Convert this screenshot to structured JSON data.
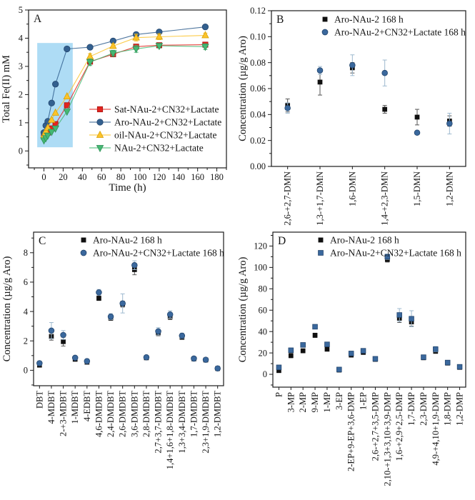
{
  "figure": {
    "description": "Four-panel geochemistry figure",
    "panel_labels": [
      "A",
      "B",
      "C",
      "D"
    ]
  },
  "chart_data": [
    {
      "id": "A",
      "type": "line",
      "panel_label": "A",
      "xlabel": "Time (h)",
      "ylabel": "Total Fe(II) mM",
      "xlim": [
        -16,
        190
      ],
      "ylim": [
        -0.6,
        5
      ],
      "xticks": [
        0,
        20,
        40,
        60,
        80,
        100,
        120,
        140,
        160,
        180
      ],
      "yticks": [
        0,
        1,
        2,
        3,
        4,
        5
      ],
      "x_minor_step": 10,
      "y_minor_step": 0.5,
      "ytick_decimals": 0,
      "grid": false,
      "legend_position": "inside right-middle",
      "highlight_region": {
        "x0": -7,
        "x1": 30,
        "y0": 0.13,
        "y1": 3.83,
        "color": "#aedcf5"
      },
      "x": [
        0,
        2,
        4,
        8,
        12,
        24,
        48,
        72,
        96,
        120,
        168
      ],
      "series": [
        {
          "name": "Sat-NAu-2+CN32+Lactate",
          "marker": "square",
          "color": "#e2241f",
          "edge": "#a81511",
          "err_color": "#e2241f",
          "values": [
            0.5,
            0.6,
            0.65,
            0.8,
            0.95,
            1.62,
            3.17,
            3.43,
            3.7,
            3.75,
            3.77
          ],
          "err": [
            0,
            0,
            0,
            0,
            0,
            0,
            0.08,
            0.05,
            0.05,
            0.05,
            0.06
          ]
        },
        {
          "name": "Aro-NAu-2+CN32+Lactate",
          "marker": "circle",
          "color": "#33608f",
          "edge": "#24466e",
          "err_color": "#33608f",
          "values": [
            0.65,
            0.9,
            1.05,
            1.7,
            2.37,
            3.62,
            3.68,
            3.9,
            4.13,
            4.22,
            4.4
          ],
          "err": [
            0,
            0,
            0,
            0,
            0,
            0,
            0,
            0,
            0,
            0,
            0
          ]
        },
        {
          "name": "oil-NAu-2+CN32+Lactate",
          "marker": "triangle-up",
          "color": "#fcc32a",
          "edge": "#d7a106",
          "err_color": "#fcc32a",
          "values": [
            0.55,
            0.7,
            0.82,
            1.1,
            1.35,
            1.93,
            3.35,
            3.72,
            4.02,
            4.05,
            4.1
          ],
          "err": [
            0,
            0,
            0,
            0,
            0,
            0,
            0.1,
            0.08,
            0.12,
            0.1,
            0.08
          ]
        },
        {
          "name": "NAu-2+CN32+Lactate",
          "marker": "triangle-down",
          "color": "#45b873",
          "edge": "#2f9157",
          "err_color": "#45b873",
          "values": [
            0.38,
            0.46,
            0.55,
            0.68,
            0.8,
            1.4,
            3.15,
            3.47,
            3.62,
            3.73,
            3.7
          ],
          "err": [
            0,
            0,
            0,
            0,
            0,
            0,
            0.12,
            0.1,
            0.12,
            0.08,
            0.1
          ]
        }
      ]
    },
    {
      "id": "B",
      "type": "scatter",
      "panel_label": "B",
      "xlabel": "",
      "ylabel": "Concentration (µg/g Aro)",
      "ylim": [
        0,
        0.12
      ],
      "yticks": [
        0,
        0.02,
        0.04,
        0.06,
        0.08,
        0.1,
        0.12
      ],
      "y_minor_step": 0.01,
      "ytick_decimals": 2,
      "grid": false,
      "legend_position": "inside top",
      "categories": [
        "2,6-+2,7-DMN",
        "1,3-+1,7-DMN",
        "1,6-DMN",
        "1,4-+2,3-DMN",
        "1,5-DMN",
        "1,2-DMN"
      ],
      "series": [
        {
          "name": "Aro-NAu-2 168 h",
          "marker": "square",
          "color": "#101010",
          "err_color": "#555555",
          "values": [
            0.047,
            0.065,
            0.076,
            0.044,
            0.038,
            0.035
          ],
          "err": [
            0.005,
            0.01,
            0.004,
            0.003,
            0.006,
            0.004
          ]
        },
        {
          "name": "Aro-NAu-2+CN32+Lactate 168 h",
          "marker": "circle",
          "color": "#3a689d",
          "edge": "#24466e",
          "err_color": "#9db9cf",
          "values": [
            0.045,
            0.074,
            0.078,
            0.072,
            0.026,
            0.033
          ],
          "err": [
            0.004,
            0.003,
            0.008,
            0.01,
            0.001,
            0.008
          ]
        }
      ]
    },
    {
      "id": "C",
      "type": "scatter",
      "panel_label": "C",
      "xlabel": "",
      "ylabel": "Concentration (µg/g Aro)",
      "ylim": [
        -1.05,
        9.4
      ],
      "yticks": [
        0,
        2,
        4,
        6,
        8
      ],
      "y_minor_step": 1,
      "ytick_decimals": 0,
      "grid": false,
      "legend_position": "inside top",
      "categories": [
        "DBT",
        "4-MDBT",
        "2-+3-MDBT",
        "1-MDBT",
        "4-EDBT",
        "4,6-DMDBT",
        "2,4-DMDBT",
        "2,6-DMDBT",
        "3,6-DMDBT",
        "2,8-DMDBT",
        "2,7+3,7-DMDBT",
        "1,4+1,6+1,8-DMDBT",
        "1,3+3,4-DMDBT",
        "1,7-DMDBT",
        "2,3+1,9-DMDBT",
        "1,2-DMDBT"
      ],
      "series": [
        {
          "name": "Aro-NAu-2 168 h",
          "marker": "square",
          "color": "#101010",
          "err_color": "#555555",
          "values": [
            0.35,
            2.3,
            1.95,
            0.75,
            0.55,
            4.9,
            3.55,
            4.5,
            6.85,
            0.85,
            2.55,
            3.65,
            2.25,
            0.78,
            0.7,
            0.12
          ],
          "err": [
            0.12,
            0.25,
            0.3,
            0.1,
            0.12,
            0.15,
            0.15,
            0.2,
            0.35,
            0.1,
            0.2,
            0.2,
            0.15,
            0.08,
            0.08,
            0.05
          ]
        },
        {
          "name": "Aro-NAu-2+CN32+Lactate 168 h",
          "marker": "circle",
          "color": "#3a689d",
          "edge": "#24466e",
          "err_color": "#9db9cf",
          "values": [
            0.48,
            2.7,
            2.4,
            0.85,
            0.62,
            5.3,
            3.65,
            4.55,
            7.15,
            0.88,
            2.65,
            3.8,
            2.35,
            0.8,
            0.72,
            0.13
          ],
          "err": [
            0.15,
            0.55,
            0.3,
            0.12,
            0.15,
            0.2,
            0.2,
            0.65,
            0.3,
            0.1,
            0.25,
            0.25,
            0.18,
            0.1,
            0.1,
            0.05
          ]
        }
      ]
    },
    {
      "id": "D",
      "type": "scatter",
      "panel_label": "D",
      "xlabel": "",
      "ylabel": "Concentration (µg/g Aro)",
      "ylim": [
        -12,
        133
      ],
      "yticks": [
        0,
        20,
        40,
        60,
        80,
        100,
        120
      ],
      "y_minor_step": 10,
      "ytick_decimals": 0,
      "grid": false,
      "legend_position": "inside top",
      "categories": [
        "P",
        "3-MP",
        "2-MP",
        "9-MP",
        "1-MP",
        "3-EP",
        "2-EP+9-EP+3,6-DMP",
        "1-EP",
        "2,6-+2,7+3,5-DMP",
        "2,10-+1,3+3,10+3,9-DMP",
        "1,6-+2,9+2,5-DMP",
        "1,7-DMP",
        "2,3-DMP",
        "4,9-+4,10+1,9-DMP",
        "1,8-DMP",
        "1,2-DMP"
      ],
      "series": [
        {
          "name": "Aro-NAu-2 168 h",
          "marker": "square",
          "color": "#101010",
          "err_color": "#555555",
          "values": [
            3.5,
            17.5,
            22,
            36.5,
            23.5,
            4,
            18,
            20.5,
            14,
            107.5,
            52.5,
            49,
            15.5,
            21.5,
            10.5,
            6.5
          ],
          "err": [
            1.5,
            2,
            1.5,
            2,
            1.5,
            1.5,
            1.5,
            1.5,
            1.5,
            2.5,
            4,
            4,
            1.5,
            1.5,
            1.5,
            1.5
          ]
        },
        {
          "name": "Aro-NAu-2+CN32+Lactate 168 h",
          "marker": "square",
          "color": "#3a689d",
          "edge": "#24466e",
          "err_color": "#9db9cf",
          "values": [
            6.5,
            22.5,
            27.5,
            44.5,
            28,
            4.5,
            19.5,
            22,
            14.5,
            110,
            55.5,
            52,
            16,
            23.5,
            11,
            7
          ],
          "err": [
            1.5,
            2,
            1.5,
            2,
            1.5,
            1.5,
            1.5,
            1.5,
            1.5,
            2.5,
            6,
            7.5,
            1.5,
            2.5,
            1.5,
            1.5
          ]
        }
      ]
    }
  ]
}
